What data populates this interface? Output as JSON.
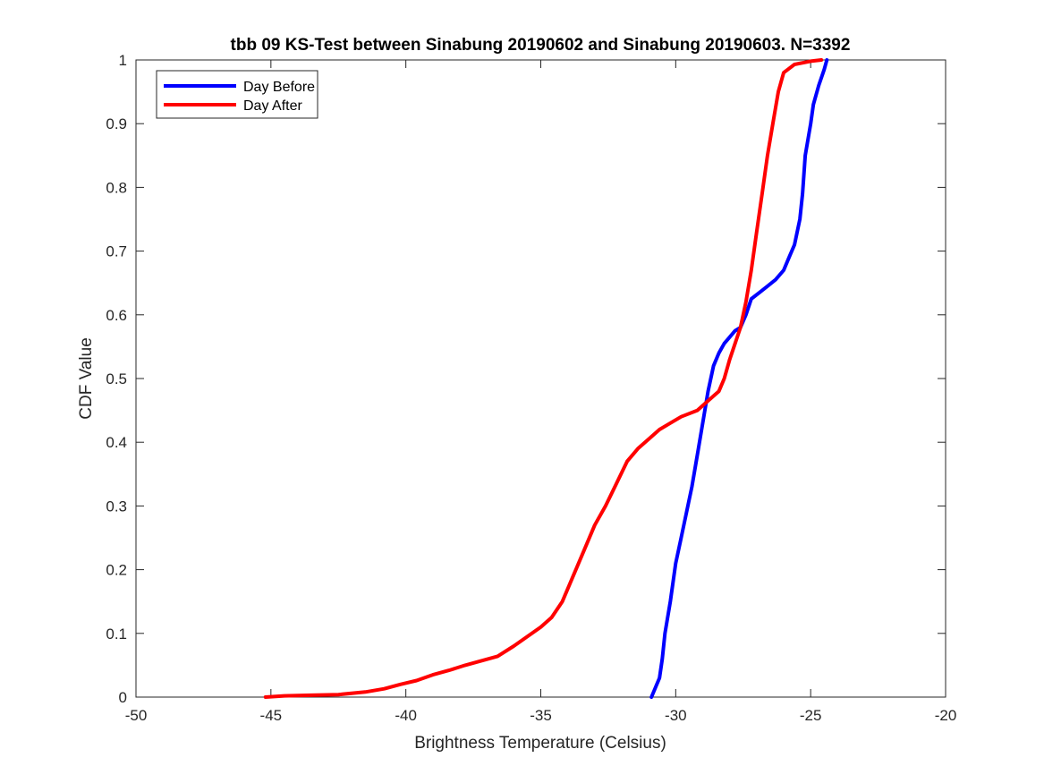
{
  "chart_data": {
    "type": "line",
    "title": "tbb 09 KS-Test between Sinabung 20190602 and Sinabung 20190603. N=3392",
    "xlabel": "Brightness Temperature (Celsius)",
    "ylabel": "CDF Value",
    "xlim": [
      -50,
      -20
    ],
    "ylim": [
      0,
      1
    ],
    "xticks": [
      -50,
      -45,
      -40,
      -35,
      -30,
      -25,
      -20
    ],
    "yticks": [
      0,
      0.1,
      0.2,
      0.3,
      0.4,
      0.5,
      0.6,
      0.7,
      0.8,
      0.9,
      1
    ],
    "xtick_labels": [
      "-50",
      "-45",
      "-40",
      "-35",
      "-30",
      "-25",
      "-20"
    ],
    "ytick_labels": [
      "0",
      "0.1",
      "0.2",
      "0.3",
      "0.4",
      "0.5",
      "0.6",
      "0.7",
      "0.8",
      "0.9",
      "1"
    ],
    "grid": false,
    "legend_position": "top-left",
    "series": [
      {
        "name": "Day Before",
        "color": "#0000ff",
        "points": [
          [
            -30.9,
            0.0
          ],
          [
            -30.8,
            0.01
          ],
          [
            -30.6,
            0.03
          ],
          [
            -30.5,
            0.06
          ],
          [
            -30.4,
            0.1
          ],
          [
            -30.2,
            0.15
          ],
          [
            -30.0,
            0.21
          ],
          [
            -29.8,
            0.25
          ],
          [
            -29.6,
            0.29
          ],
          [
            -29.4,
            0.33
          ],
          [
            -29.2,
            0.38
          ],
          [
            -29.0,
            0.43
          ],
          [
            -28.8,
            0.48
          ],
          [
            -28.6,
            0.52
          ],
          [
            -28.4,
            0.54
          ],
          [
            -28.2,
            0.555
          ],
          [
            -28.0,
            0.565
          ],
          [
            -27.8,
            0.575
          ],
          [
            -27.6,
            0.58
          ],
          [
            -27.4,
            0.6
          ],
          [
            -27.2,
            0.625
          ],
          [
            -26.9,
            0.635
          ],
          [
            -26.6,
            0.645
          ],
          [
            -26.3,
            0.655
          ],
          [
            -26.0,
            0.67
          ],
          [
            -25.8,
            0.69
          ],
          [
            -25.6,
            0.71
          ],
          [
            -25.4,
            0.75
          ],
          [
            -25.3,
            0.79
          ],
          [
            -25.2,
            0.85
          ],
          [
            -25.0,
            0.9
          ],
          [
            -24.9,
            0.93
          ],
          [
            -24.7,
            0.96
          ],
          [
            -24.5,
            0.985
          ],
          [
            -24.4,
            1.0
          ]
        ]
      },
      {
        "name": "Day After",
        "color": "#ff0000",
        "points": [
          [
            -45.2,
            0.0
          ],
          [
            -44.5,
            0.002
          ],
          [
            -43.5,
            0.003
          ],
          [
            -42.5,
            0.004
          ],
          [
            -41.5,
            0.008
          ],
          [
            -40.8,
            0.013
          ],
          [
            -40.2,
            0.02
          ],
          [
            -39.6,
            0.026
          ],
          [
            -39.0,
            0.035
          ],
          [
            -38.4,
            0.042
          ],
          [
            -37.8,
            0.05
          ],
          [
            -37.2,
            0.057
          ],
          [
            -36.6,
            0.064
          ],
          [
            -36.0,
            0.08
          ],
          [
            -35.5,
            0.095
          ],
          [
            -35.0,
            0.11
          ],
          [
            -34.6,
            0.125
          ],
          [
            -34.2,
            0.15
          ],
          [
            -33.8,
            0.19
          ],
          [
            -33.4,
            0.23
          ],
          [
            -33.0,
            0.27
          ],
          [
            -32.6,
            0.3
          ],
          [
            -32.2,
            0.335
          ],
          [
            -31.8,
            0.37
          ],
          [
            -31.4,
            0.39
          ],
          [
            -31.0,
            0.405
          ],
          [
            -30.6,
            0.42
          ],
          [
            -30.2,
            0.43
          ],
          [
            -29.8,
            0.44
          ],
          [
            -29.2,
            0.45
          ],
          [
            -28.8,
            0.465
          ],
          [
            -28.4,
            0.48
          ],
          [
            -28.2,
            0.5
          ],
          [
            -28.0,
            0.53
          ],
          [
            -27.8,
            0.555
          ],
          [
            -27.6,
            0.58
          ],
          [
            -27.4,
            0.62
          ],
          [
            -27.2,
            0.67
          ],
          [
            -27.0,
            0.73
          ],
          [
            -26.8,
            0.79
          ],
          [
            -26.6,
            0.85
          ],
          [
            -26.4,
            0.9
          ],
          [
            -26.2,
            0.95
          ],
          [
            -26.0,
            0.98
          ],
          [
            -25.6,
            0.993
          ],
          [
            -25.0,
            0.998
          ],
          [
            -24.6,
            1.0
          ]
        ]
      }
    ]
  }
}
